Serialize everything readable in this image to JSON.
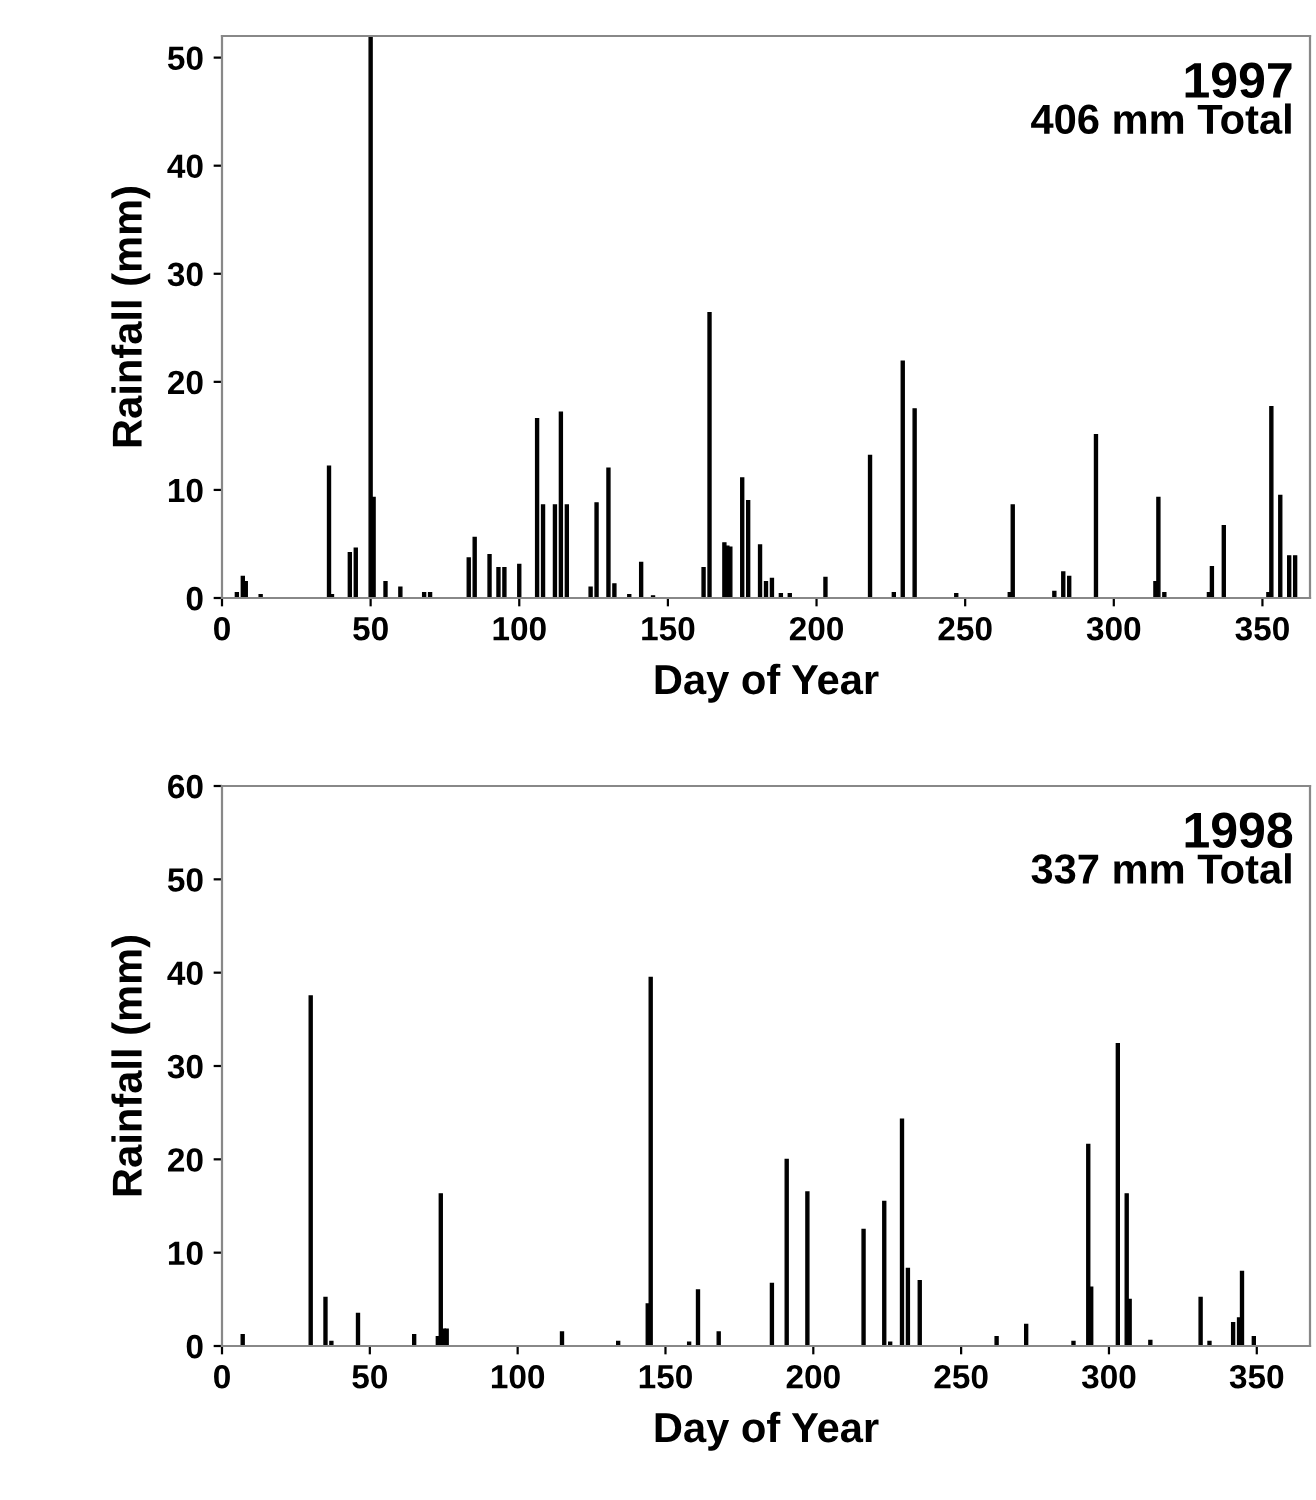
{
  "chart_data": [
    {
      "type": "bar",
      "annotations": [
        "1997",
        "406 mm Total"
      ],
      "xlabel": "Day of Year",
      "ylabel": "Rainfall (mm)",
      "color": "#000000",
      "grid": false,
      "legend": false,
      "x": [
        5,
        7,
        8,
        13,
        36,
        37,
        43,
        45,
        50,
        51,
        55,
        60,
        68,
        70,
        83,
        85,
        90,
        93,
        95,
        100,
        106,
        108,
        112,
        114,
        116,
        124,
        126,
        130,
        132,
        137,
        141,
        145,
        162,
        164,
        169,
        170,
        171,
        175,
        177,
        181,
        183,
        185,
        188,
        191,
        203,
        218,
        226,
        229,
        233,
        247,
        265,
        266,
        280,
        283,
        285,
        294,
        314,
        315,
        317,
        332,
        333,
        337,
        352,
        353,
        356,
        359,
        361
      ],
      "values": [
        0.5,
        2,
        1.5,
        0.3,
        12.2,
        0.3,
        4.2,
        4.6,
        52,
        9.3,
        1.5,
        1,
        0.5,
        0.5,
        3.7,
        5.6,
        4,
        2.8,
        2.8,
        3.1,
        16.6,
        8.6,
        8.6,
        17.2,
        8.6,
        1,
        8.8,
        12,
        1.3,
        0.3,
        3.3,
        0.2,
        2.8,
        26.4,
        5.1,
        4.8,
        4.7,
        11.1,
        9,
        4.9,
        1.5,
        1.8,
        0.4,
        0.4,
        1.9,
        13.2,
        0.5,
        21.9,
        17.5,
        0.4,
        0.5,
        8.6,
        0.6,
        2.4,
        2,
        15.1,
        1.5,
        9.3,
        0.5,
        0.5,
        2.9,
        6.7,
        0.5,
        17.7,
        9.5,
        3.9,
        3.9
      ],
      "xlim": [
        0,
        366
      ],
      "xticks": [
        0,
        50,
        100,
        150,
        200,
        250,
        300,
        350
      ],
      "ylim": [
        0,
        52
      ],
      "yticks": [
        0,
        10,
        20,
        30,
        40,
        50
      ]
    },
    {
      "type": "bar",
      "annotations": [
        "1998",
        "337 mm Total"
      ],
      "xlabel": "Day of Year",
      "ylabel": "Rainfall (mm)",
      "color": "#000000",
      "grid": false,
      "legend": false,
      "x": [
        7,
        30,
        35,
        37,
        46,
        65,
        73,
        74,
        75,
        76,
        115,
        134,
        144,
        145,
        158,
        161,
        168,
        186,
        191,
        198,
        217,
        224,
        226,
        230,
        232,
        236,
        262,
        272,
        288,
        293,
        294,
        303,
        306,
        307,
        314,
        331,
        334,
        342,
        344,
        345,
        349
      ],
      "values": [
        1.2,
        37.5,
        5.2,
        0.5,
        3.5,
        1.2,
        1,
        16.3,
        1.8,
        1.8,
        1.5,
        0.5,
        4.5,
        39.5,
        0.4,
        6,
        1.5,
        6.7,
        20,
        16.5,
        12.5,
        15.5,
        0.4,
        24.3,
        8.3,
        7,
        1,
        2.3,
        0.5,
        21.6,
        6.3,
        32.4,
        16.3,
        5,
        0.6,
        5.2,
        0.5,
        2.5,
        3,
        8,
        1
      ],
      "xlim": [
        0,
        368
      ],
      "xticks": [
        0,
        50,
        100,
        150,
        200,
        250,
        300,
        350
      ],
      "ylim": [
        0,
        60
      ],
      "yticks": [
        0,
        10,
        20,
        30,
        40,
        50,
        60
      ]
    }
  ]
}
